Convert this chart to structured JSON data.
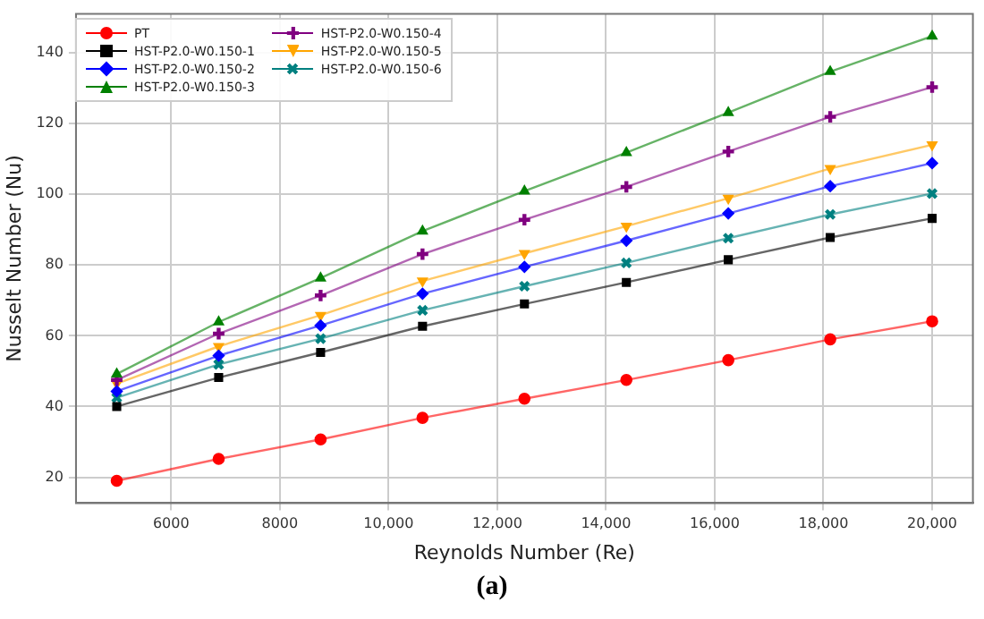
{
  "chart_data": {
    "type": "line",
    "xlabel": "Reynolds Number (Re)",
    "ylabel": "Nusselt Number (Nu)",
    "annotations": [
      "(a)"
    ],
    "x": [
      5000,
      6875,
      8750,
      10625,
      12500,
      14375,
      16250,
      18125,
      20000
    ],
    "xlim": [
      4250,
      20750
    ],
    "xticks": [
      6000,
      8000,
      {
        "value": 10000,
        "label": "10,000"
      },
      {
        "value": 12000,
        "label": "12,000"
      },
      {
        "value": 14000,
        "label": "14,000"
      },
      {
        "value": 16000,
        "label": "16,000"
      },
      {
        "value": 18000,
        "label": "18,000"
      },
      {
        "value": 20000,
        "label": "20,000"
      }
    ],
    "ylim": [
      12.7,
      151
    ],
    "yticks": [
      20,
      40,
      60,
      80,
      100,
      120,
      140
    ],
    "grid": true,
    "legend": "top left",
    "line_style": "solid",
    "series": [
      {
        "name": "PT",
        "color": "#ff0000",
        "marker": "circle",
        "values": [
          19,
          25.2,
          30.7,
          36.8,
          42.2,
          47.5,
          53.1,
          59,
          64.1
        ]
      },
      {
        "name": "HST-P2.0-W0.150-1",
        "color": "#000000",
        "marker": "square",
        "values": [
          40,
          48.2,
          55.3,
          62.7,
          69,
          75.1,
          81.5,
          87.8,
          93.2
        ]
      },
      {
        "name": "HST-P2.0-W0.150-2",
        "color": "#0000ff",
        "marker": "diamond",
        "values": [
          44.3,
          54.4,
          62.9,
          71.9,
          79.5,
          86.9,
          94.6,
          102.3,
          108.8
        ]
      },
      {
        "name": "HST-P2.0-W0.150-3",
        "color": "#008000",
        "marker": "triangle",
        "values": [
          49.2,
          63.9,
          76.3,
          89.6,
          100.9,
          111.8,
          123.1,
          134.7,
          144.7
        ]
      },
      {
        "name": "HST-P2.0-W0.150-4",
        "color": "#800080",
        "marker": "cross",
        "values": [
          47.5,
          60.6,
          71.4,
          83.1,
          92.8,
          102.1,
          112.1,
          121.9,
          130.3
        ]
      },
      {
        "name": "HST-P2.0-W0.150-5",
        "color": "#ffa500",
        "marker": "triangle-down",
        "values": [
          46.5,
          57,
          65.8,
          75.5,
          83.3,
          91,
          98.9,
          107.3,
          114
        ]
      },
      {
        "name": "HST-P2.0-W0.150-6",
        "color": "#008080",
        "marker": "x",
        "values": [
          42.5,
          51.9,
          59.2,
          67.2,
          74,
          80.6,
          87.6,
          94.3,
          100.2
        ]
      }
    ]
  }
}
